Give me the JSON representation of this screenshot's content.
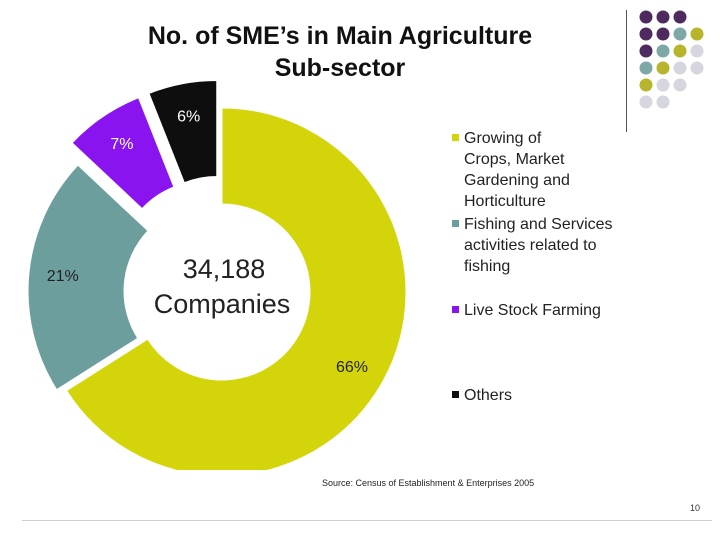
{
  "title_line1": "No. of SME’s in Main Agriculture",
  "title_line2": "Sub-sector",
  "center_value": "34,188",
  "center_label": "Companies",
  "source": "Source: Census of Establishment & Enterprises 2005",
  "page_number": "10",
  "colors": {
    "crops": "#d4d40a",
    "fishing": "#6d9e9e",
    "livestock": "#8a14f0",
    "others": "#0e0e0e",
    "dot_purple": "#4e2a5e",
    "dot_teal": "#7ea8a6",
    "dot_olive": "#b7b52c",
    "dot_grey": "#d6d6de"
  },
  "chart_data": {
    "type": "pie",
    "style": "exploded donut",
    "categories": [
      "Growing of Crops, Market Gardening and Horticulture",
      "Fishing and Services activities related to fishing",
      "Live Stock Farming",
      "Others"
    ],
    "values": [
      66,
      21,
      7,
      6
    ],
    "value_labels": [
      "66%",
      "21%",
      "7%",
      "6%"
    ],
    "legend_position": "right",
    "legend": [
      {
        "lines": [
          "Growing of",
          "Crops, Market",
          "Gardening and",
          "Horticulture"
        ],
        "color_key": "crops"
      },
      {
        "lines": [
          "Fishing and Services",
          "activities related to",
          "fishing"
        ],
        "color_key": "fishing"
      },
      {
        "lines": [
          "Live Stock Farming"
        ],
        "color_key": "livestock"
      },
      {
        "lines": [
          "Others"
        ],
        "color_key": "others"
      }
    ]
  }
}
